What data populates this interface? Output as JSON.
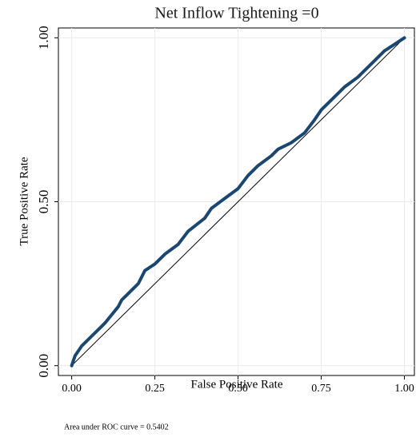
{
  "chart_data": {
    "type": "line",
    "title": "Net Inflow Tightening =0",
    "x_label": "False Positive Rate",
    "y_label": "True Positive Rate",
    "note": "Area under ROC curve = 0.5402",
    "series": [
      {
        "color": "#1a476f",
        "x": [
          0,
          0.01,
          0.03,
          0.06,
          0.1,
          0.14,
          0.15,
          0.17,
          0.2,
          0.22,
          0.25,
          0.28,
          0.32,
          0.35,
          0.4,
          0.42,
          0.46,
          0.5,
          0.53,
          0.56,
          0.6,
          0.62,
          0.66,
          0.7,
          0.73,
          0.75,
          0.78,
          0.82,
          0.86,
          0.9,
          0.94,
          0.97,
          1
        ],
        "values": [
          0,
          0.03,
          0.06,
          0.09,
          0.13,
          0.18,
          0.2,
          0.22,
          0.25,
          0.29,
          0.31,
          0.34,
          0.37,
          0.41,
          0.45,
          0.48,
          0.51,
          0.54,
          0.58,
          0.61,
          0.64,
          0.66,
          0.68,
          0.71,
          0.75,
          0.78,
          0.81,
          0.85,
          0.88,
          0.92,
          0.96,
          0.98,
          1
        ]
      },
      {
        "color": "#000000",
        "x": [
          0,
          1
        ],
        "values": [
          0,
          1
        ]
      }
    ],
    "xlim": [
      -0.04,
      1.03
    ],
    "ylim": [
      -0.03,
      1.03
    ],
    "xticks": [
      {
        "value": 0,
        "label": "0.00"
      },
      {
        "value": 0.25,
        "label": "0.25"
      },
      {
        "value": 0.5,
        "label": "0.50"
      },
      {
        "value": 0.75,
        "label": "0.75"
      },
      {
        "value": 1,
        "label": "1.00"
      }
    ],
    "yticks": [
      {
        "value": 0,
        "label": "0.00"
      },
      {
        "value": 0.5,
        "label": "0.50"
      },
      {
        "value": 1,
        "label": "1.00"
      }
    ],
    "grid": true
  }
}
